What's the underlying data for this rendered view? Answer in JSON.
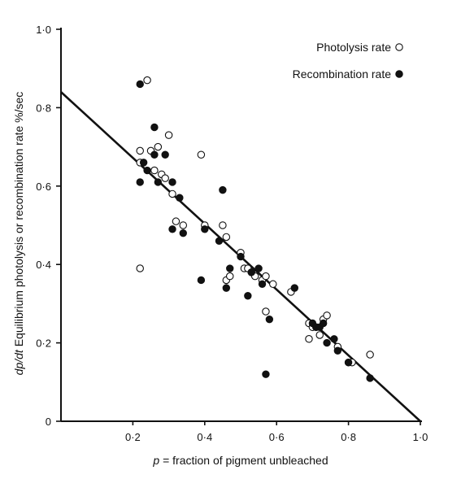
{
  "chart_data": {
    "type": "scatter",
    "title": "",
    "xlabel_symbol": "p",
    "xlabel": "= fraction of pigment unbleached",
    "ylabel_symbol": "dp/dt",
    "ylabel": "Equilibrium photolysis or recombination rate",
    "ylabel_unit": "%/sec",
    "xlim": [
      0,
      1.0
    ],
    "ylim": [
      0,
      1.0
    ],
    "x_ticks": [
      {
        "value": 0.2,
        "label": "0·2"
      },
      {
        "value": 0.4,
        "label": "0·4"
      },
      {
        "value": 0.6,
        "label": "0·6"
      },
      {
        "value": 0.8,
        "label": "0·8"
      },
      {
        "value": 1.0,
        "label": "1·0"
      }
    ],
    "y_ticks": [
      {
        "value": 0,
        "label": "0"
      },
      {
        "value": 0.2,
        "label": "0·2"
      },
      {
        "value": 0.4,
        "label": "0·4"
      },
      {
        "value": 0.6,
        "label": "0·6"
      },
      {
        "value": 0.8,
        "label": "0·8"
      },
      {
        "value": 1.0,
        "label": "1·0"
      }
    ],
    "legend_position": "top-right",
    "grid": false,
    "fit_line": {
      "x": [
        0,
        1.0
      ],
      "y": [
        0.84,
        0
      ]
    },
    "series": [
      {
        "name": "Photolysis rate",
        "marker": "open-circle",
        "points": [
          [
            0.22,
            0.69
          ],
          [
            0.22,
            0.66
          ],
          [
            0.22,
            0.39
          ],
          [
            0.24,
            0.87
          ],
          [
            0.25,
            0.69
          ],
          [
            0.26,
            0.64
          ],
          [
            0.27,
            0.7
          ],
          [
            0.28,
            0.63
          ],
          [
            0.29,
            0.62
          ],
          [
            0.3,
            0.73
          ],
          [
            0.31,
            0.58
          ],
          [
            0.32,
            0.51
          ],
          [
            0.34,
            0.5
          ],
          [
            0.39,
            0.68
          ],
          [
            0.4,
            0.5
          ],
          [
            0.45,
            0.5
          ],
          [
            0.46,
            0.47
          ],
          [
            0.46,
            0.36
          ],
          [
            0.47,
            0.37
          ],
          [
            0.5,
            0.43
          ],
          [
            0.51,
            0.39
          ],
          [
            0.52,
            0.39
          ],
          [
            0.53,
            0.38
          ],
          [
            0.54,
            0.37
          ],
          [
            0.56,
            0.36
          ],
          [
            0.57,
            0.37
          ],
          [
            0.57,
            0.28
          ],
          [
            0.59,
            0.35
          ],
          [
            0.64,
            0.33
          ],
          [
            0.69,
            0.25
          ],
          [
            0.69,
            0.21
          ],
          [
            0.7,
            0.24
          ],
          [
            0.71,
            0.24
          ],
          [
            0.72,
            0.22
          ],
          [
            0.73,
            0.26
          ],
          [
            0.74,
            0.27
          ],
          [
            0.77,
            0.19
          ],
          [
            0.8,
            0.15
          ],
          [
            0.81,
            0.15
          ],
          [
            0.86,
            0.17
          ]
        ]
      },
      {
        "name": "Recombination rate",
        "marker": "filled-circle",
        "points": [
          [
            0.22,
            0.86
          ],
          [
            0.22,
            0.61
          ],
          [
            0.23,
            0.66
          ],
          [
            0.24,
            0.64
          ],
          [
            0.26,
            0.75
          ],
          [
            0.26,
            0.68
          ],
          [
            0.27,
            0.61
          ],
          [
            0.29,
            0.68
          ],
          [
            0.31,
            0.61
          ],
          [
            0.31,
            0.49
          ],
          [
            0.33,
            0.57
          ],
          [
            0.34,
            0.48
          ],
          [
            0.39,
            0.36
          ],
          [
            0.4,
            0.49
          ],
          [
            0.44,
            0.46
          ],
          [
            0.45,
            0.59
          ],
          [
            0.46,
            0.34
          ],
          [
            0.47,
            0.39
          ],
          [
            0.5,
            0.42
          ],
          [
            0.52,
            0.32
          ],
          [
            0.53,
            0.38
          ],
          [
            0.55,
            0.39
          ],
          [
            0.56,
            0.35
          ],
          [
            0.57,
            0.12
          ],
          [
            0.58,
            0.26
          ],
          [
            0.65,
            0.34
          ],
          [
            0.7,
            0.25
          ],
          [
            0.71,
            0.24
          ],
          [
            0.72,
            0.24
          ],
          [
            0.73,
            0.25
          ],
          [
            0.74,
            0.2
          ],
          [
            0.76,
            0.21
          ],
          [
            0.77,
            0.18
          ],
          [
            0.8,
            0.15
          ],
          [
            0.86,
            0.11
          ]
        ]
      }
    ]
  }
}
